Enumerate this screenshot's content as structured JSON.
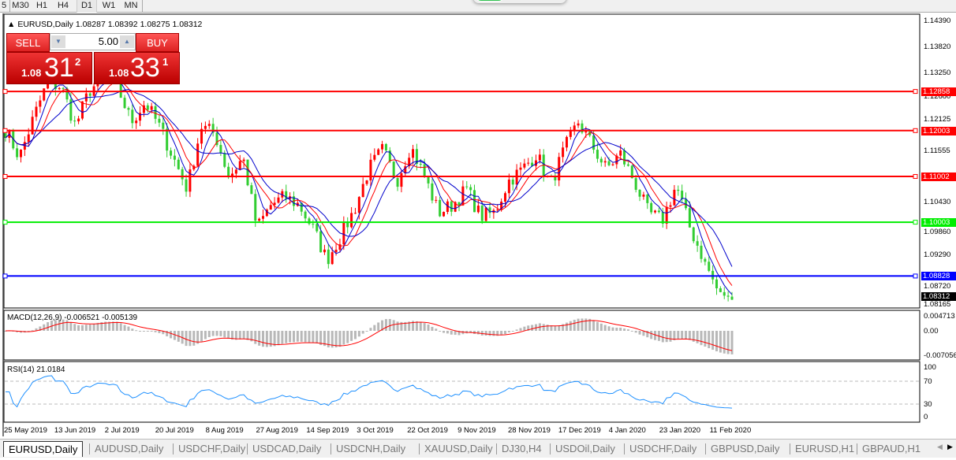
{
  "toolbar": {
    "timeframes": [
      "5",
      "M30",
      "H1",
      "H4",
      "D1",
      "W1",
      "MN"
    ],
    "selected": "D1"
  },
  "chart": {
    "symbol_line": "EURUSD,Daily  1.08287 1.08392 1.08275 1.08312",
    "price_axis": [
      "1.14390",
      "1.13820",
      "1.13250",
      "1.12680",
      "1.12125",
      "1.11555",
      "1.10430",
      "1.09860",
      "1.09290",
      "1.08720",
      "1.08165"
    ],
    "hlines": [
      {
        "price": "1.12858",
        "color": "#ff0000"
      },
      {
        "price": "1.12003",
        "color": "#ff0000"
      },
      {
        "price": "1.11002",
        "color": "#ff0000"
      },
      {
        "price": "1.10003",
        "color": "#00ee00"
      },
      {
        "price": "1.08828",
        "color": "#0000ff"
      }
    ],
    "current_price": "1.08312",
    "dates": [
      "25 May 2019",
      "13 Jun 2019",
      "2 Jul 2019",
      "20 Jul 2019",
      "8 Aug 2019",
      "27 Aug 2019",
      "14 Sep 2019",
      "3 Oct 2019",
      "22 Oct 2019",
      "9 Nov 2019",
      "28 Nov 2019",
      "17 Dec 2019",
      "4 Jan 2020",
      "23 Jan 2020",
      "11 Feb 2020"
    ],
    "bull_color": "#ff0000",
    "bear_color": "#32cd32"
  },
  "chart_data": {
    "type": "candlestick",
    "ylim": [
      1.08165,
      1.1439
    ],
    "approx_closes": [
      1.1202,
      1.1142,
      1.1228,
      1.1305,
      1.1296,
      1.121,
      1.1288,
      1.1314,
      1.1296,
      1.1219,
      1.1262,
      1.121,
      1.1142,
      1.1073,
      1.121,
      1.1193,
      1.1099,
      1.1142,
      1.0987,
      1.1038,
      1.1056,
      1.1038,
      1.0987,
      1.0918,
      1.097,
      1.103,
      1.1116,
      1.1159,
      1.109,
      1.1167,
      1.1099,
      1.1021,
      1.1038,
      1.1073,
      1.1013,
      1.1021,
      1.109,
      1.1116,
      1.115,
      1.1081,
      1.1159,
      1.1219,
      1.1167,
      1.1116,
      1.115,
      1.109,
      1.1021,
      1.1004,
      1.1081,
      1.0987,
      1.0918,
      1.0849,
      1.0831
    ]
  },
  "trade": {
    "sell": "SELL",
    "buy": "BUY",
    "lots": "5.00",
    "sell_pre": "1.08",
    "sell_main": "31",
    "sell_sup": "2",
    "buy_pre": "1.08",
    "buy_main": "33",
    "buy_sup": "1"
  },
  "macd": {
    "label": "MACD(12,26,9) -0.006521 -0.005139",
    "axis": [
      "0.004713",
      "0.00",
      "-0.007056"
    ]
  },
  "rsi": {
    "label": "RSI(14) 21.0184",
    "axis": [
      "100",
      "70",
      "30",
      "0"
    ]
  },
  "tabs": [
    "EURUSD,Daily",
    "AUDUSD,Daily",
    "USDCHF,Daily",
    "USDCAD,Daily",
    "USDCNH,Daily",
    "XAUUSD,Daily",
    "DJ30,H4",
    "USDOil,Daily",
    "USDCHF,Daily",
    "GBPUSD,Daily",
    "EURUSD,H1",
    "GBPAUD,H1"
  ]
}
